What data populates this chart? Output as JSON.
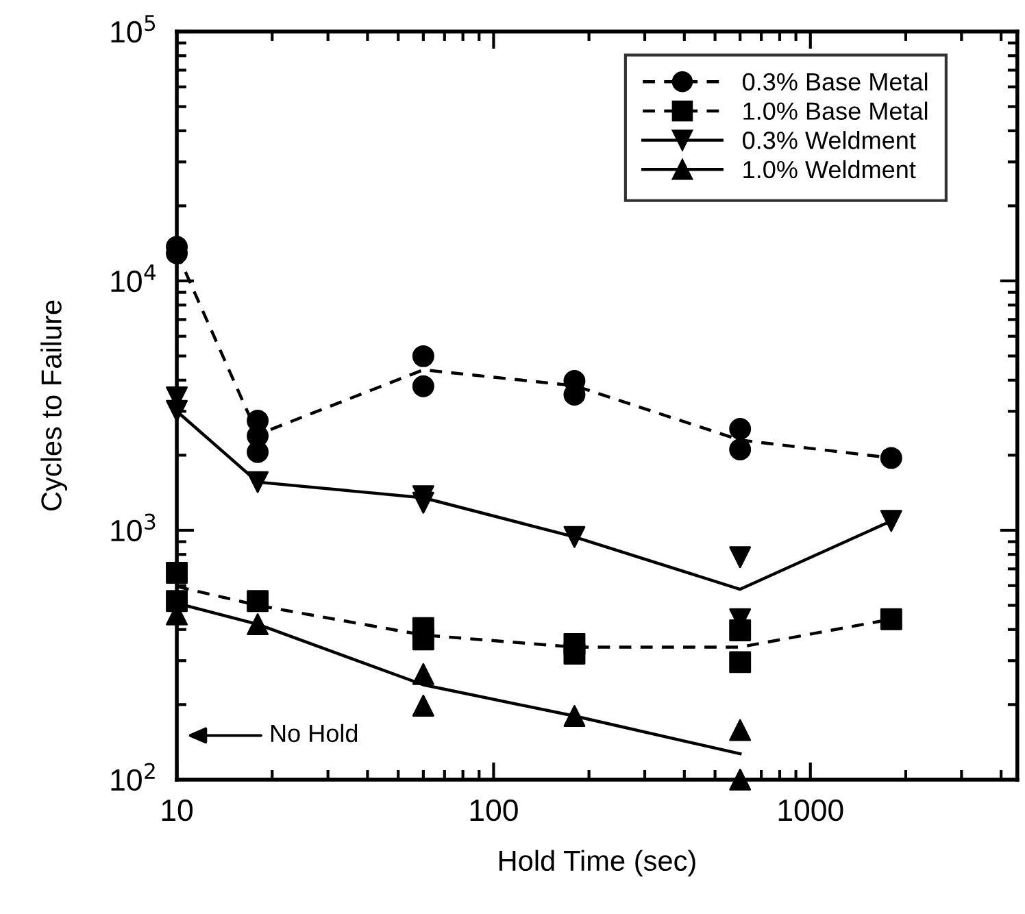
{
  "chart_data": {
    "type": "scatter",
    "xlabel": "Hold Time (sec)",
    "ylabel": "Cycles to Failure",
    "log": "xy",
    "xlim": [
      10,
      4500
    ],
    "ylim": [
      100,
      100000
    ],
    "xticks": [
      10,
      100,
      1000
    ],
    "yticks": [
      {
        "value": 100,
        "label": "10$^{2}$"
      },
      {
        "value": 1000,
        "label": "10$^{3}$"
      },
      {
        "value": 10000,
        "label": "10$^{4}$"
      },
      {
        "value": 100000,
        "label": "10$^{5}$"
      }
    ],
    "grid": false,
    "legend": "top right",
    "annotations": [
      "No Hold"
    ],
    "series": [
      {
        "name": "0.3% Base Metal",
        "color": "#000000",
        "marker": "circle",
        "line_style": "dashed",
        "x": [
          10,
          10,
          18,
          18,
          18,
          60,
          60,
          180,
          180,
          600,
          600,
          1800
        ],
        "values": [
          13700,
          12900,
          2750,
          2390,
          2060,
          4990,
          3780,
          3970,
          3500,
          2550,
          2110,
          1950
        ]
      },
      {
        "name": "1.0% Base Metal",
        "color": "#000000",
        "marker": "square",
        "line_style": "dashed",
        "x": [
          10,
          10,
          18,
          60,
          60,
          180,
          180,
          600,
          600,
          1800
        ],
        "values": [
          675,
          520,
          520,
          405,
          365,
          350,
          320,
          397,
          296,
          440
        ]
      },
      {
        "name": "0.3% Weldment",
        "color": "#000000",
        "marker": "triangle_down",
        "line_style": "solid",
        "x": [
          10,
          10,
          18,
          60,
          60,
          180,
          600,
          600,
          1800
        ],
        "values": [
          3410,
          3010,
          1560,
          1370,
          1290,
          940,
          780,
          440,
          1090
        ]
      },
      {
        "name": "1.0% Weldment",
        "color": "#000000",
        "marker": "triangle",
        "line_style": "solid",
        "x": [
          10,
          18,
          60,
          60,
          180,
          600,
          600
        ],
        "values": [
          460,
          420,
          265,
          198,
          180,
          158,
          100
        ]
      },
      {
        "type": "line",
        "color": "#000000",
        "marker": "none",
        "line_style": "dashed",
        "x": [
          10,
          18,
          60,
          180,
          600,
          1800
        ],
        "values": [
          13000,
          2420,
          4400,
          3800,
          2300,
          1950
        ]
      },
      {
        "type": "line",
        "color": "#000000",
        "marker": "none",
        "line_style": "dashed",
        "x": [
          10,
          18,
          60,
          180,
          600,
          1800
        ],
        "values": [
          595,
          500,
          380,
          340,
          340,
          440
        ]
      },
      {
        "type": "line",
        "color": "#000000",
        "marker": "none",
        "line_style": "solid",
        "x": [
          10,
          18,
          60,
          180,
          600,
          1800
        ],
        "values": [
          3000,
          1560,
          1350,
          940,
          580,
          1090
        ]
      },
      {
        "type": "line",
        "color": "#000000",
        "marker": "none",
        "line_style": "solid",
        "x": [
          10,
          18,
          60,
          180,
          600
        ],
        "values": [
          510,
          420,
          240,
          180,
          127
        ]
      }
    ]
  }
}
